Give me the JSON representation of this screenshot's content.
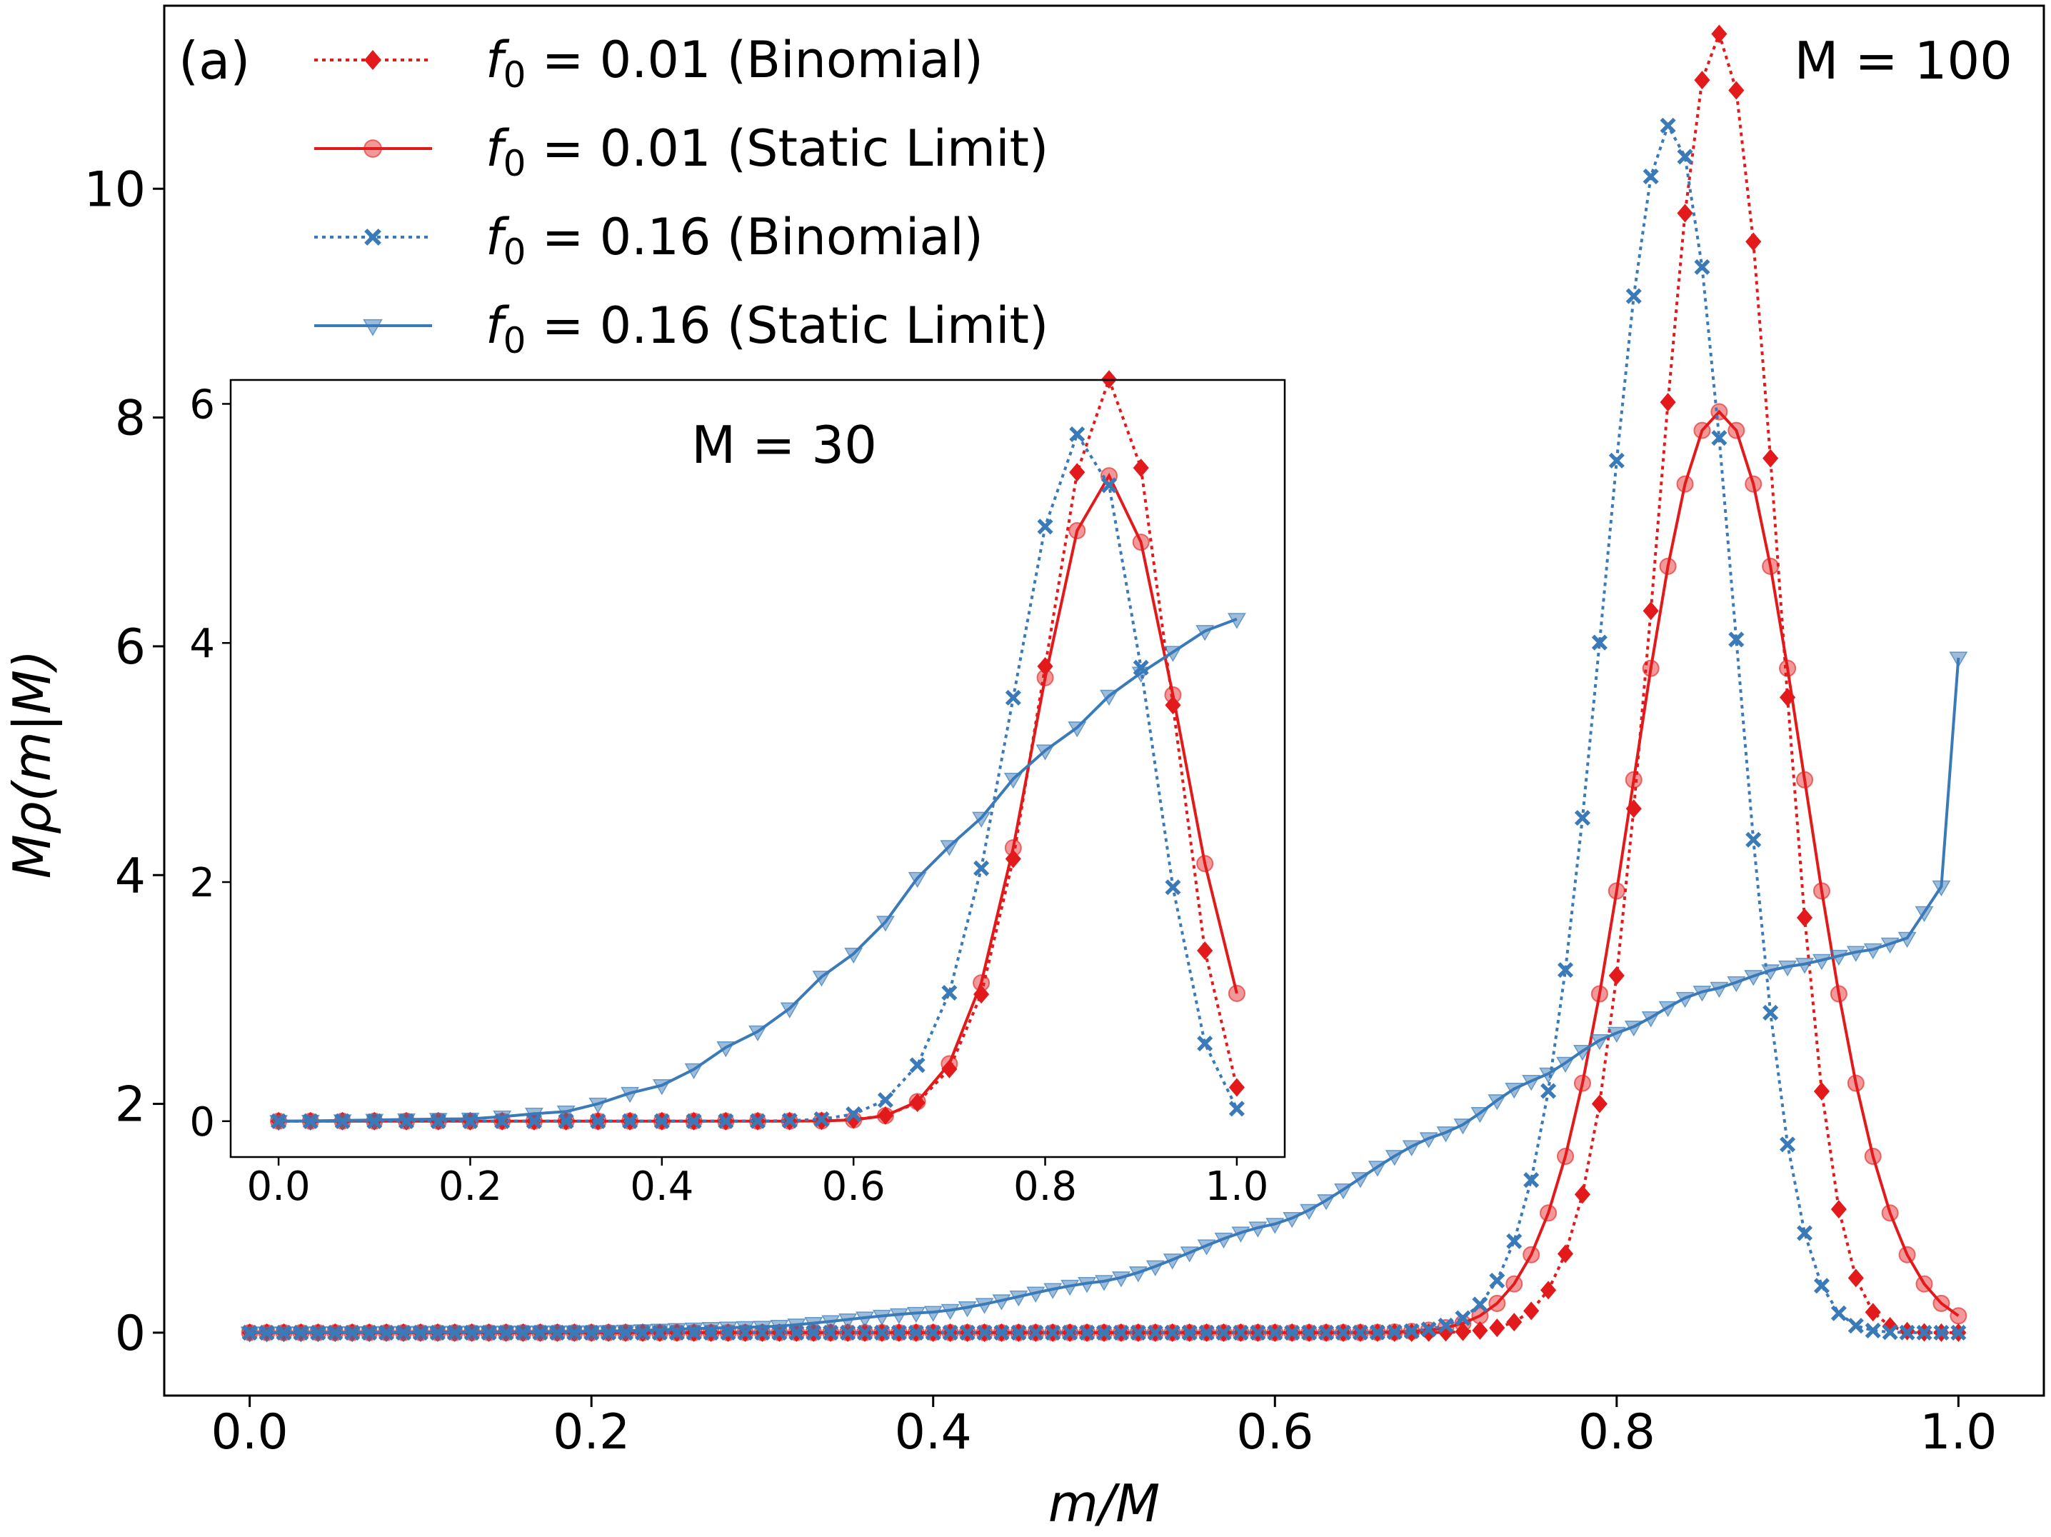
{
  "chart_data": [
    {
      "type": "line",
      "panel_label": "(a)",
      "annotation": "M = 100",
      "xlabel": "m/M",
      "ylabel": "Mρ(m|M)",
      "xlim": [
        -0.05,
        1.05
      ],
      "ylim": [
        -0.55,
        11.6
      ],
      "x_ticks": [
        0.0,
        0.2,
        0.4,
        0.6,
        0.8,
        1.0
      ],
      "x_tick_labels": [
        "0.0",
        "0.2",
        "0.4",
        "0.6",
        "0.8",
        "1.0"
      ],
      "y_ticks": [
        0,
        2,
        4,
        6,
        8,
        10
      ],
      "y_tick_labels": [
        "0",
        "2",
        "4",
        "6",
        "8",
        "10"
      ],
      "legend": [
        {
          "f_label": "f",
          "sub": "0",
          "eq": " = 0.01 (Binomial)",
          "series": "f001_binomial"
        },
        {
          "f_label": "f",
          "sub": "0",
          "eq": " = 0.01 (Static Limit)",
          "series": "f001_static"
        },
        {
          "f_label": "f",
          "sub": "0",
          "eq": " = 0.16 (Binomial)",
          "series": "f016_binomial"
        },
        {
          "f_label": "f",
          "sub": "0",
          "eq": " = 0.16 (Static Limit)",
          "series": "f016_static"
        }
      ],
      "M": 100,
      "series": [
        {
          "id": "f001_binomial",
          "name": "f0 = 0.01 (Binomial)",
          "model": {
            "kind": "binomial",
            "p": 0.856
          },
          "color": "#e31a1c",
          "line": "dotted",
          "marker": "diamond",
          "alpha": 1.0
        },
        {
          "id": "f001_static",
          "name": "f0 = 0.01 (Static Limit)",
          "model": {
            "kind": "gauss",
            "mu": 0.86,
            "sigma": 0.0495,
            "peak": 8.05
          },
          "color": "#e31a1c",
          "line": "solid",
          "marker": "circle",
          "alpha": 0.45
        },
        {
          "id": "f016_binomial",
          "name": "f0 = 0.16 (Binomial)",
          "model": {
            "kind": "binomial",
            "p": 0.828
          },
          "color": "#3a7ab8",
          "line": "dotted",
          "marker": "x",
          "alpha": 1.0
        },
        {
          "id": "f016_static",
          "name": "f0 = 0.16 (Static Limit)",
          "model": {
            "kind": "static_ramp"
          },
          "color": "#3a7ab8",
          "line": "solid",
          "marker": "triangle",
          "alpha": 0.5,
          "anchors": [
            [
              0.0,
              0.0
            ],
            [
              0.2,
              0.01
            ],
            [
              0.3,
              0.05
            ],
            [
              0.4,
              0.18
            ],
            [
              0.5,
              0.45
            ],
            [
              0.6,
              0.95
            ],
            [
              0.7,
              1.75
            ],
            [
              0.75,
              2.2
            ],
            [
              0.8,
              2.62
            ],
            [
              0.85,
              2.98
            ],
            [
              0.9,
              3.2
            ],
            [
              0.95,
              3.35
            ],
            [
              0.97,
              3.45
            ],
            [
              0.99,
              3.9
            ],
            [
              1.0,
              5.9
            ]
          ]
        }
      ]
    },
    {
      "type": "line",
      "panel": "inset",
      "annotation": "M = 30",
      "xlim": [
        -0.05,
        1.05
      ],
      "ylim": [
        -0.3,
        6.2
      ],
      "x_ticks": [
        0.0,
        0.2,
        0.4,
        0.6,
        0.8,
        1.0
      ],
      "x_tick_labels": [
        "0.0",
        "0.2",
        "0.4",
        "0.6",
        "0.8",
        "1.0"
      ],
      "y_ticks": [
        0,
        2,
        4,
        6
      ],
      "y_tick_labels": [
        "0",
        "2",
        "4",
        "6"
      ],
      "M": 30,
      "series": [
        {
          "id": "f001_binomial",
          "name": "f0 = 0.01 (Binomial)",
          "model": {
            "kind": "binomial",
            "p": 0.856
          },
          "color": "#e31a1c",
          "line": "dotted",
          "marker": "diamond",
          "alpha": 1.0
        },
        {
          "id": "f001_static",
          "name": "f0 = 0.01 (Static Limit)",
          "model": {
            "kind": "gauss",
            "mu": 0.865,
            "sigma": 0.075,
            "peak": 5.4
          },
          "color": "#e31a1c",
          "line": "solid",
          "marker": "circle",
          "alpha": 0.45
        },
        {
          "id": "f016_binomial",
          "name": "f0 = 0.16 (Binomial)",
          "model": {
            "kind": "binomial",
            "p": 0.828
          },
          "color": "#3a7ab8",
          "line": "dotted",
          "marker": "x",
          "alpha": 1.0
        },
        {
          "id": "f016_static",
          "name": "f0 = 0.16 (Static Limit)",
          "model": {
            "kind": "static_ramp"
          },
          "color": "#3a7ab8",
          "line": "solid",
          "marker": "triangle",
          "alpha": 0.5,
          "anchors": [
            [
              0.0,
              0.0
            ],
            [
              0.2,
              0.02
            ],
            [
              0.3,
              0.08
            ],
            [
              0.4,
              0.3
            ],
            [
              0.5,
              0.75
            ],
            [
              0.6,
              1.4
            ],
            [
              0.7,
              2.3
            ],
            [
              0.8,
              3.1
            ],
            [
              0.9,
              3.75
            ],
            [
              0.967,
              4.1
            ],
            [
              1.0,
              4.2
            ]
          ]
        }
      ]
    }
  ]
}
